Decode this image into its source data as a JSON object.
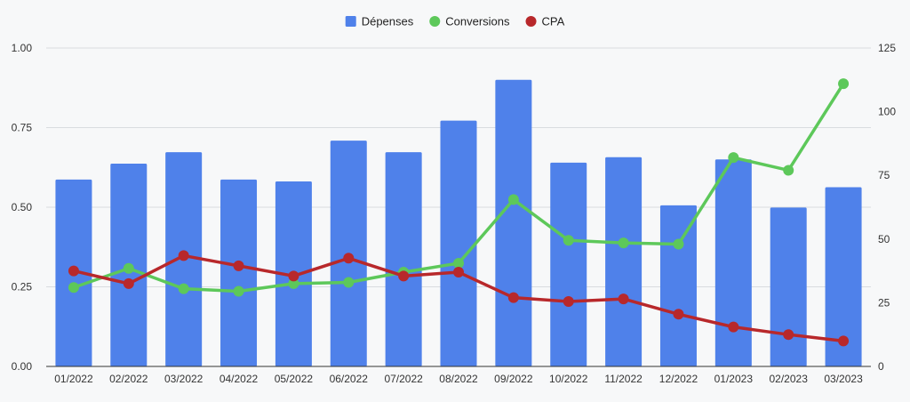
{
  "chart_data": {
    "type": "bar",
    "categories": [
      "01/2022",
      "02/2022",
      "03/2022",
      "04/2022",
      "05/2022",
      "06/2022",
      "07/2022",
      "08/2022",
      "09/2022",
      "10/2022",
      "11/2022",
      "12/2022",
      "01/2023",
      "02/2023",
      "03/2023"
    ],
    "series": [
      {
        "name": "Dépenses",
        "type": "bar",
        "axis": "left",
        "color": "#4f81ea",
        "values": [
          0.587,
          0.637,
          0.673,
          0.587,
          0.581,
          0.709,
          0.673,
          0.772,
          0.9,
          0.64,
          0.657,
          0.506,
          0.65,
          0.499,
          0.563
        ]
      },
      {
        "name": "Conversions",
        "type": "line",
        "axis": "right",
        "color": "#5dc85a",
        "values": [
          31,
          38.5,
          30.5,
          29.5,
          32.5,
          33,
          37,
          40.5,
          65.5,
          49.5,
          48.5,
          48,
          82,
          77,
          111
        ]
      },
      {
        "name": "CPA",
        "type": "line",
        "axis": "right",
        "color": "#b8282b",
        "values": [
          37.5,
          32.5,
          43.5,
          39.5,
          35.5,
          42.5,
          35.5,
          37,
          27,
          25.5,
          26.5,
          20.5,
          15.5,
          12.5,
          10
        ]
      }
    ],
    "y_left": {
      "ylim": [
        0,
        1
      ],
      "ticks": [
        "0.00",
        "0.25",
        "0.50",
        "0.75",
        "1.00"
      ],
      "tick_values": [
        0,
        0.25,
        0.5,
        0.75,
        1
      ]
    },
    "y_right": {
      "ylim": [
        0,
        125
      ],
      "ticks": [
        "0",
        "25",
        "50",
        "75",
        "100",
        "125"
      ],
      "tick_values": [
        0,
        25,
        50,
        75,
        100,
        125
      ]
    },
    "title": "",
    "xlabel": "",
    "ylabel": "",
    "grid": true,
    "legend_position": "top-center"
  }
}
